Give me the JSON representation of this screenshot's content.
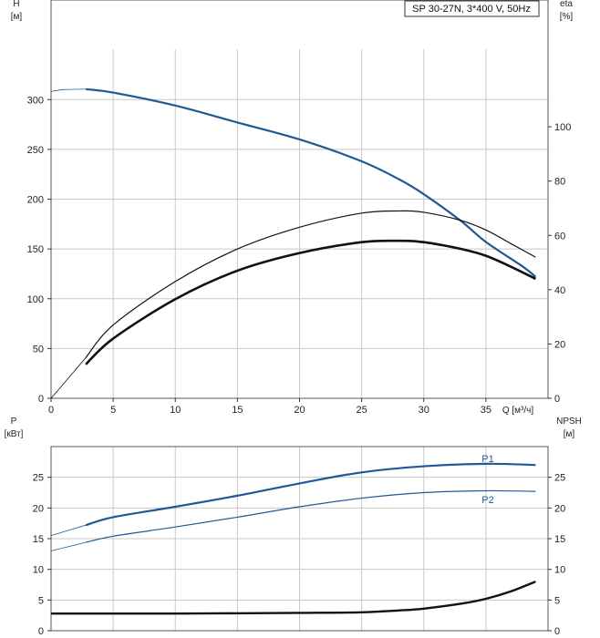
{
  "title": "SP 30-27N, 3*400 V, 50Hz",
  "colors": {
    "blue": "#1f5a96",
    "black": "#111111",
    "grid": "#c8c8c8"
  },
  "chart_data": [
    {
      "type": "line",
      "panel": "top",
      "ylabel": "H",
      "yunit": "[м]",
      "y2label": "eta",
      "y2unit": "[%]",
      "xlabel": "Q [м³/ч]",
      "xlim": [
        0,
        40
      ],
      "ylim": [
        0,
        400
      ],
      "y2lim": [
        0,
        146.7
      ],
      "xticks": [
        "0",
        "5",
        "10",
        "15",
        "20",
        "25",
        "30",
        "35"
      ],
      "yticks": [
        "0",
        "50",
        "100",
        "150",
        "200",
        "250",
        "300"
      ],
      "y2ticks": [
        "0",
        "20",
        "40",
        "60",
        "80",
        "100"
      ],
      "series": [
        {
          "key": "H",
          "axis": "left",
          "color": "#1f5a96",
          "width": 2.2,
          "ext": [
            [
              0,
              308
            ],
            [
              1,
              310
            ],
            [
              2.8,
              310.5
            ]
          ],
          "points": [
            [
              2.8,
              310.5
            ],
            [
              5,
              307
            ],
            [
              10,
              294
            ],
            [
              15,
              277
            ],
            [
              20,
              260
            ],
            [
              25,
              238
            ],
            [
              28,
              220
            ],
            [
              30,
              205
            ],
            [
              33,
              178
            ],
            [
              35,
              157
            ],
            [
              38,
              132
            ],
            [
              39,
              122
            ]
          ]
        },
        {
          "key": "eta",
          "axis": "right",
          "color": "#111111",
          "width": 1.2,
          "ext": [
            [
              0,
              0
            ],
            [
              1.5,
              8
            ],
            [
              2.8,
              15
            ]
          ],
          "points": [
            [
              2.8,
              15
            ],
            [
              5,
              27
            ],
            [
              10,
              43
            ],
            [
              15,
              55
            ],
            [
              20,
              63
            ],
            [
              25,
              68.2
            ],
            [
              28,
              69
            ],
            [
              30,
              68.5
            ],
            [
              33,
              65.5
            ],
            [
              35,
              62
            ],
            [
              37,
              57
            ],
            [
              39,
              52
            ]
          ]
        },
        {
          "key": "eta_pump",
          "axis": "right",
          "color": "#111111",
          "width": 2.6,
          "points": [
            [
              2.8,
              12.5
            ],
            [
              5,
              22
            ],
            [
              10,
              36.5
            ],
            [
              15,
              47
            ],
            [
              20,
              53.5
            ],
            [
              25,
              57.5
            ],
            [
              28,
              58
            ],
            [
              30,
              57.5
            ],
            [
              33,
              55
            ],
            [
              35,
              52.5
            ],
            [
              37,
              48.5
            ],
            [
              39,
              44
            ]
          ]
        }
      ]
    },
    {
      "type": "line",
      "panel": "bottom",
      "ylabel": "P",
      "yunit": "[кВт]",
      "y2label": "NPSH",
      "y2unit": "[м]",
      "xlim": [
        0,
        40
      ],
      "ylim": [
        0,
        30
      ],
      "y2lim": [
        0,
        30
      ],
      "yticks": [
        "0",
        "5",
        "10",
        "15",
        "20",
        "25"
      ],
      "y2ticks": [
        "0",
        "5",
        "10",
        "15",
        "20",
        "25"
      ],
      "series": [
        {
          "key": "P1",
          "name": "P1",
          "axis": "left",
          "color": "#1f5a96",
          "width": 2.2,
          "ext": [
            [
              0,
              15.5
            ],
            [
              2.8,
              17.2
            ]
          ],
          "points": [
            [
              2.8,
              17.2
            ],
            [
              5,
              18.5
            ],
            [
              10,
              20.2
            ],
            [
              15,
              22
            ],
            [
              20,
              24
            ],
            [
              25,
              25.8
            ],
            [
              30,
              26.8
            ],
            [
              35,
              27.2
            ],
            [
              39,
              27.0
            ]
          ]
        },
        {
          "key": "P2",
          "name": "P2",
          "axis": "left",
          "color": "#1f5a96",
          "width": 1.2,
          "ext": [
            [
              0,
              13.0
            ],
            [
              2.8,
              14.4
            ]
          ],
          "points": [
            [
              2.8,
              14.4
            ],
            [
              5,
              15.4
            ],
            [
              10,
              16.9
            ],
            [
              15,
              18.5
            ],
            [
              20,
              20.2
            ],
            [
              25,
              21.6
            ],
            [
              30,
              22.5
            ],
            [
              35,
              22.8
            ],
            [
              39,
              22.7
            ]
          ]
        },
        {
          "key": "NPSH",
          "axis": "right",
          "color": "#111111",
          "width": 2.4,
          "points": [
            [
              0,
              2.8
            ],
            [
              10,
              2.8
            ],
            [
              20,
              2.9
            ],
            [
              25,
              3.0
            ],
            [
              28,
              3.3
            ],
            [
              30,
              3.6
            ],
            [
              33,
              4.4
            ],
            [
              35,
              5.2
            ],
            [
              37,
              6.4
            ],
            [
              39,
              8.0
            ]
          ]
        }
      ]
    }
  ]
}
